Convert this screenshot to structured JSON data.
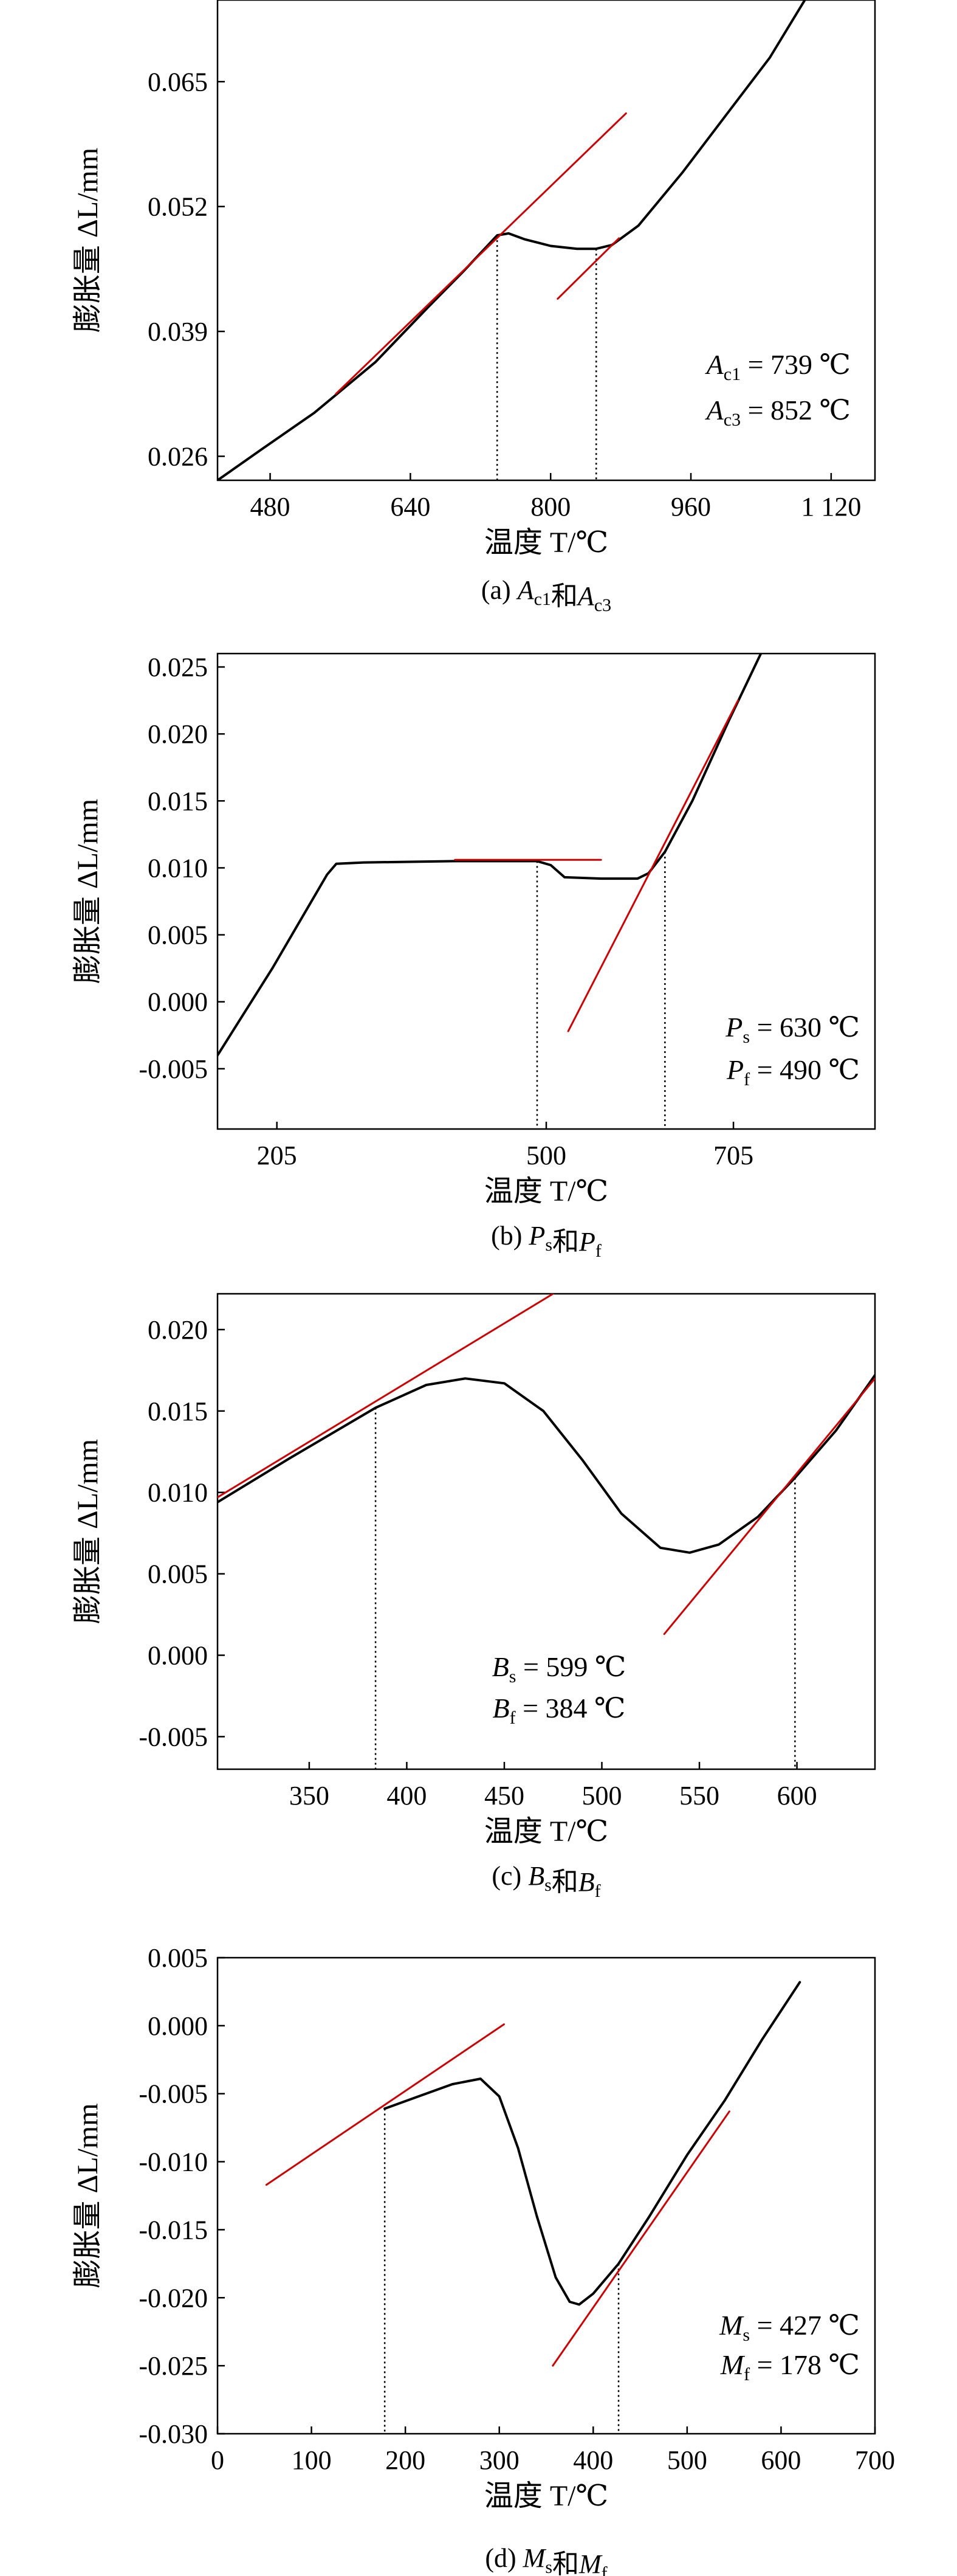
{
  "chart_data": [
    {
      "id": "a",
      "type": "line",
      "caption_prefix": "(a) ",
      "caption": [
        [
          "A",
          "c1"
        ],
        [
          "和",
          ""
        ],
        [
          "A",
          "c3"
        ]
      ],
      "xlabel": "温度 T/℃",
      "ylabel": "膨胀量 ΔL/mm",
      "xlim": [
        420,
        1170
      ],
      "ylim": [
        0.0235,
        0.0735
      ],
      "x_ticks": [
        480,
        640,
        800,
        960,
        1120
      ],
      "x_tick_labels": [
        "480",
        "640",
        "800",
        "960",
        "1 120"
      ],
      "y_ticks": [
        0.026,
        0.039,
        0.052,
        0.065
      ],
      "y_tick_labels": [
        "0.026",
        "0.039",
        "0.052",
        "0.065"
      ],
      "series": [
        {
          "role": "curve",
          "color": "#000000",
          "points": [
            [
              420,
              0.0235
            ],
            [
              470,
              0.0267
            ],
            [
              530,
              0.0305
            ],
            [
              600,
              0.0358
            ],
            [
              660,
              0.0415
            ],
            [
              700,
              0.0452
            ],
            [
              739,
              0.049
            ],
            [
              752,
              0.0492
            ],
            [
              770,
              0.0486
            ],
            [
              800,
              0.0479
            ],
            [
              830,
              0.0476
            ],
            [
              852,
              0.0476
            ],
            [
              870,
              0.048
            ],
            [
              900,
              0.05
            ],
            [
              950,
              0.0555
            ],
            [
              1000,
              0.0615
            ],
            [
              1050,
              0.0675
            ],
            [
              1090,
              0.0735
            ]
          ]
        },
        {
          "role": "tangent",
          "color": "#cc0000",
          "points": [
            [
              555,
              0.0325
            ],
            [
              886,
              0.0617
            ]
          ]
        },
        {
          "role": "tangent",
          "color": "#cc0000",
          "points": [
            [
              808,
              0.0424
            ],
            [
              878,
              0.0487
            ]
          ]
        }
      ],
      "markers_x": [
        739,
        852
      ],
      "marker_y": [
        0.049,
        0.0476
      ],
      "annotations": [
        {
          "sym": "A",
          "sub": "c1",
          "text": " = 739 ℃"
        },
        {
          "sym": "A",
          "sub": "c3",
          "text": " = 852 ℃"
        }
      ]
    },
    {
      "id": "b",
      "type": "line",
      "caption_prefix": "(b) ",
      "caption": [
        [
          "P",
          "s"
        ],
        [
          "和",
          ""
        ],
        [
          "P",
          "f"
        ]
      ],
      "xlabel": "温度 T/℃",
      "ylabel": "膨胀量 ΔL/mm",
      "xlim": [
        140,
        860
      ],
      "ylim": [
        -0.0095,
        0.026
      ],
      "x_ticks": [
        205,
        500,
        705
      ],
      "x_tick_labels": [
        "205",
        "500",
        "705"
      ],
      "y_ticks": [
        -0.005,
        0.0,
        0.005,
        0.01,
        0.015,
        0.02,
        0.025
      ],
      "y_tick_labels": [
        "-0.005",
        "0.000",
        "0.005",
        "0.010",
        "0.015",
        "0.020",
        "0.025"
      ],
      "series": [
        {
          "role": "curve",
          "color": "#000000",
          "points": [
            [
              140,
              -0.004
            ],
            [
              200,
              0.0025
            ],
            [
              260,
              0.0095
            ],
            [
              270,
              0.0103
            ],
            [
              300,
              0.0104
            ],
            [
              400,
              0.0105
            ],
            [
              490,
              0.0105
            ],
            [
              505,
              0.0102
            ],
            [
              520,
              0.0093
            ],
            [
              560,
              0.0092
            ],
            [
              600,
              0.0092
            ],
            [
              612,
              0.0096
            ],
            [
              630,
              0.0112
            ],
            [
              660,
              0.015
            ],
            [
              700,
              0.021
            ],
            [
              735,
              0.026
            ]
          ]
        },
        {
          "role": "tangent",
          "color": "#cc0000",
          "points": [
            [
              400,
              0.0106
            ],
            [
              560,
              0.0106
            ]
          ]
        },
        {
          "role": "tangent",
          "color": "#cc0000",
          "points": [
            [
              524,
              -0.0022
            ],
            [
              710,
              0.0225
            ]
          ]
        }
      ],
      "markers_x": [
        490,
        630
      ],
      "marker_y": [
        0.0105,
        0.0112
      ],
      "annotations": [
        {
          "sym": "P",
          "sub": "s",
          "text": " = 630 ℃"
        },
        {
          "sym": "P",
          "sub": "f",
          "text": " = 490 ℃"
        }
      ]
    },
    {
      "id": "c",
      "type": "line",
      "caption_prefix": "(c) ",
      "caption": [
        [
          "B",
          "s"
        ],
        [
          "和",
          ""
        ],
        [
          "B",
          "f"
        ]
      ],
      "xlabel": "温度 T/℃",
      "ylabel": "膨胀量 ΔL/mm",
      "xlim": [
        303,
        640
      ],
      "ylim": [
        -0.007,
        0.0222
      ],
      "x_ticks": [
        350,
        400,
        450,
        500,
        550,
        600
      ],
      "x_tick_labels": [
        "350",
        "400",
        "450",
        "500",
        "550",
        "600"
      ],
      "y_ticks": [
        -0.005,
        0.0,
        0.005,
        0.01,
        0.015,
        0.02
      ],
      "y_tick_labels": [
        "-0.005",
        "0.000",
        "0.005",
        "0.010",
        "0.015",
        "0.020"
      ],
      "series": [
        {
          "role": "curve",
          "color": "#000000",
          "points": [
            [
              303,
              0.0094
            ],
            [
              340,
              0.0121
            ],
            [
              384,
              0.0152
            ],
            [
              410,
              0.0166
            ],
            [
              430,
              0.017
            ],
            [
              450,
              0.0167
            ],
            [
              470,
              0.015
            ],
            [
              490,
              0.012
            ],
            [
              510,
              0.0087
            ],
            [
              530,
              0.0066
            ],
            [
              545,
              0.0063
            ],
            [
              560,
              0.0068
            ],
            [
              580,
              0.0085
            ],
            [
              599,
              0.0109
            ],
            [
              620,
              0.0138
            ],
            [
              640,
              0.0172
            ]
          ]
        },
        {
          "role": "tangent",
          "color": "#cc0000",
          "points": [
            [
              303,
              0.0097
            ],
            [
              475,
              0.0222
            ]
          ]
        },
        {
          "role": "tangent",
          "color": "#cc0000",
          "points": [
            [
              532,
              0.0013
            ],
            [
              640,
              0.017
            ]
          ]
        }
      ],
      "markers_x": [
        384,
        599
      ],
      "marker_y": [
        0.0152,
        0.0109
      ],
      "annotations": [
        {
          "sym": "B",
          "sub": "s",
          "text": " = 599 ℃"
        },
        {
          "sym": "B",
          "sub": "f",
          "text": " = 384 ℃"
        }
      ]
    },
    {
      "id": "d",
      "type": "line",
      "caption_prefix": "(d) ",
      "caption": [
        [
          "M",
          "s"
        ],
        [
          "和",
          ""
        ],
        [
          "M",
          "f"
        ]
      ],
      "xlabel": "温度 T/℃",
      "ylabel": "膨胀量 ΔL/mm",
      "xlim": [
        0,
        700
      ],
      "ylim": [
        -0.03,
        0.005
      ],
      "x_ticks": [
        0,
        100,
        200,
        300,
        400,
        500,
        600,
        700
      ],
      "x_tick_labels": [
        "0",
        "100",
        "200",
        "300",
        "400",
        "500",
        "600",
        "700"
      ],
      "y_ticks": [
        -0.03,
        -0.025,
        -0.02,
        -0.015,
        -0.01,
        -0.005,
        0.0,
        0.005
      ],
      "y_tick_labels": [
        "-0.030",
        "-0.025",
        "-0.020",
        "-0.015",
        "-0.010",
        "-0.005",
        "0.000",
        "0.005"
      ],
      "series": [
        {
          "role": "curve",
          "color": "#000000",
          "points": [
            [
              178,
              -0.0061
            ],
            [
              210,
              -0.0053
            ],
            [
              250,
              -0.0043
            ],
            [
              280,
              -0.0039
            ],
            [
              300,
              -0.0052
            ],
            [
              320,
              -0.009
            ],
            [
              340,
              -0.014
            ],
            [
              360,
              -0.0185
            ],
            [
              375,
              -0.0203
            ],
            [
              385,
              -0.0205
            ],
            [
              400,
              -0.0197
            ],
            [
              427,
              -0.0175
            ],
            [
              460,
              -0.014
            ],
            [
              500,
              -0.0095
            ],
            [
              540,
              -0.0055
            ],
            [
              580,
              -0.001
            ],
            [
              620,
              0.0032
            ]
          ]
        },
        {
          "role": "tangent",
          "color": "#cc0000",
          "points": [
            [
              52,
              -0.0117
            ],
            [
              305,
              0.0001
            ]
          ]
        },
        {
          "role": "tangent",
          "color": "#cc0000",
          "points": [
            [
              357,
              -0.025
            ],
            [
              545,
              -0.0063
            ]
          ]
        }
      ],
      "markers_x": [
        178,
        427
      ],
      "marker_y": [
        -0.0061,
        -0.0175
      ],
      "annotations": [
        {
          "sym": "M",
          "sub": "s",
          "text": " = 427 ℃"
        },
        {
          "sym": "M",
          "sub": "f",
          "text": " = 178 ℃"
        }
      ]
    }
  ]
}
